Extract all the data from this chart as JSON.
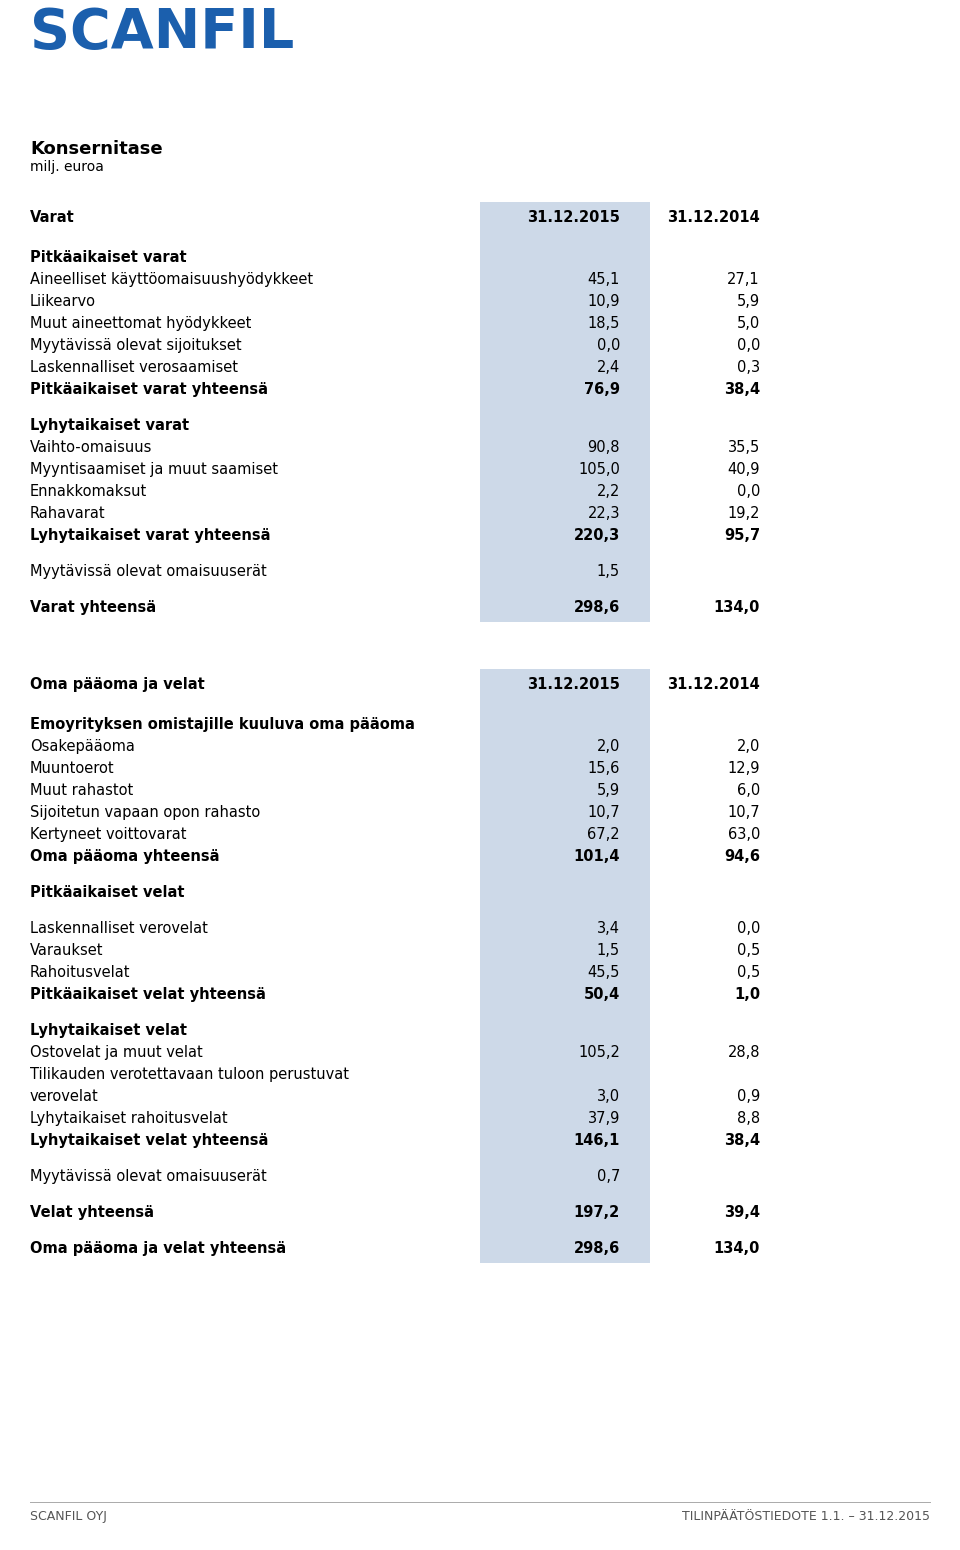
{
  "title": "Konsernitase",
  "subtitle": "milj. euroa",
  "logo_text": "SCANFIL",
  "footer_left": "SCANFIL OYJ",
  "footer_right": "TILINPÄÄTÖSTIEDOTE 1.1. – 31.12.2015",
  "col_header_2015": "31.12.2015",
  "col_header_2014": "31.12.2014",
  "highlight_color": "#cdd9e8",
  "section1_header": "Varat",
  "rows": [
    {
      "label": "Pitkäaikaiset varat",
      "v2015": "",
      "v2014": "",
      "bold": true,
      "category_header": true,
      "spacer_before": true
    },
    {
      "label": "Aineelliset käyttöomaisuushyödykkeet",
      "v2015": "45,1",
      "v2014": "27,1",
      "bold": false
    },
    {
      "label": "Liikearvo",
      "v2015": "10,9",
      "v2014": "5,9",
      "bold": false
    },
    {
      "label": "Muut aineettomat hyödykkeet",
      "v2015": "18,5",
      "v2014": "5,0",
      "bold": false
    },
    {
      "label": "Myytävissä olevat sijoitukset",
      "v2015": "0,0",
      "v2014": "0,0",
      "bold": false
    },
    {
      "label": "Laskennalliset verosaamiset",
      "v2015": "2,4",
      "v2014": "0,3",
      "bold": false
    },
    {
      "label": "Pitkäaikaiset varat yhteensä",
      "v2015": "76,9",
      "v2014": "38,4",
      "bold": true
    },
    {
      "label": "",
      "v2015": "",
      "v2014": "",
      "bold": false,
      "spacer": true
    },
    {
      "label": "Lyhytaikaiset varat",
      "v2015": "",
      "v2014": "",
      "bold": true,
      "category_header": true
    },
    {
      "label": "Vaihto-omaisuus",
      "v2015": "90,8",
      "v2014": "35,5",
      "bold": false
    },
    {
      "label": "Myyntisaamiset ja muut saamiset",
      "v2015": "105,0",
      "v2014": "40,9",
      "bold": false
    },
    {
      "label": "Ennakkomaksut",
      "v2015": "2,2",
      "v2014": "0,0",
      "bold": false
    },
    {
      "label": "Rahavarat",
      "v2015": "22,3",
      "v2014": "19,2",
      "bold": false
    },
    {
      "label": "Lyhytaikaiset varat yhteensä",
      "v2015": "220,3",
      "v2014": "95,7",
      "bold": true
    },
    {
      "label": "",
      "v2015": "",
      "v2014": "",
      "bold": false,
      "spacer": true
    },
    {
      "label": "Myytävissä olevat omaisuuserät",
      "v2015": "1,5",
      "v2014": "",
      "bold": false
    },
    {
      "label": "",
      "v2015": "",
      "v2014": "",
      "bold": false,
      "spacer": true
    },
    {
      "label": "Varat yhteensä",
      "v2015": "298,6",
      "v2014": "134,0",
      "bold": true
    }
  ],
  "section2_header": "Oma pääoma ja velat",
  "rows2": [
    {
      "label": "Emoyrityksen omistajille kuuluva oma pääoma",
      "v2015": "",
      "v2014": "",
      "bold": true,
      "category_header": true,
      "spacer_before": true
    },
    {
      "label": "Osakepääoma",
      "v2015": "2,0",
      "v2014": "2,0",
      "bold": false
    },
    {
      "label": "Muuntoerot",
      "v2015": "15,6",
      "v2014": "12,9",
      "bold": false
    },
    {
      "label": "Muut rahastot",
      "v2015": "5,9",
      "v2014": "6,0",
      "bold": false
    },
    {
      "label": "Sijoitetun vapaan opon rahasto",
      "v2015": "10,7",
      "v2014": "10,7",
      "bold": false
    },
    {
      "label": "Kertyneet voittovarat",
      "v2015": "67,2",
      "v2014": "63,0",
      "bold": false
    },
    {
      "label": "Oma pääoma yhteensä",
      "v2015": "101,4",
      "v2014": "94,6",
      "bold": true
    },
    {
      "label": "",
      "v2015": "",
      "v2014": "",
      "bold": false,
      "spacer": true
    },
    {
      "label": "Pitkäaikaiset velat",
      "v2015": "",
      "v2014": "",
      "bold": true,
      "category_header": true
    },
    {
      "label": "",
      "v2015": "",
      "v2014": "",
      "bold": false,
      "spacer": true
    },
    {
      "label": "Laskennalliset verovelat",
      "v2015": "3,4",
      "v2014": "0,0",
      "bold": false
    },
    {
      "label": "Varaukset",
      "v2015": "1,5",
      "v2014": "0,5",
      "bold": false
    },
    {
      "label": "Rahoitusvelat",
      "v2015": "45,5",
      "v2014": "0,5",
      "bold": false
    },
    {
      "label": "Pitkäaikaiset velat yhteensä",
      "v2015": "50,4",
      "v2014": "1,0",
      "bold": true
    },
    {
      "label": "",
      "v2015": "",
      "v2014": "",
      "bold": false,
      "spacer": true
    },
    {
      "label": "Lyhytaikaiset velat",
      "v2015": "",
      "v2014": "",
      "bold": true,
      "category_header": true
    },
    {
      "label": "Ostovelat ja muut velat",
      "v2015": "105,2",
      "v2014": "28,8",
      "bold": false
    },
    {
      "label": "Tilikauden verotettavaan tuloon perustuvat",
      "v2015": "",
      "v2014": "",
      "bold": false,
      "wrap_line1": true
    },
    {
      "label": "verovelat",
      "v2015": "3,0",
      "v2014": "0,9",
      "bold": false,
      "wrap_line2": true
    },
    {
      "label": "Lyhytaikaiset rahoitusvelat",
      "v2015": "37,9",
      "v2014": "8,8",
      "bold": false
    },
    {
      "label": "Lyhytaikaiset velat yhteensä",
      "v2015": "146,1",
      "v2014": "38,4",
      "bold": true
    },
    {
      "label": "",
      "v2015": "",
      "v2014": "",
      "bold": false,
      "spacer": true
    },
    {
      "label": "Myytävissä olevat omaisuuserät",
      "v2015": "0,7",
      "v2014": "",
      "bold": false
    },
    {
      "label": "",
      "v2015": "",
      "v2014": "",
      "bold": false,
      "spacer": true
    },
    {
      "label": "Velat yhteensä",
      "v2015": "197,2",
      "v2014": "39,4",
      "bold": true
    },
    {
      "label": "",
      "v2015": "",
      "v2014": "",
      "bold": false,
      "spacer": true
    },
    {
      "label": "Oma pääoma ja velat yhteensä",
      "v2015": "298,6",
      "v2014": "134,0",
      "bold": true
    }
  ]
}
